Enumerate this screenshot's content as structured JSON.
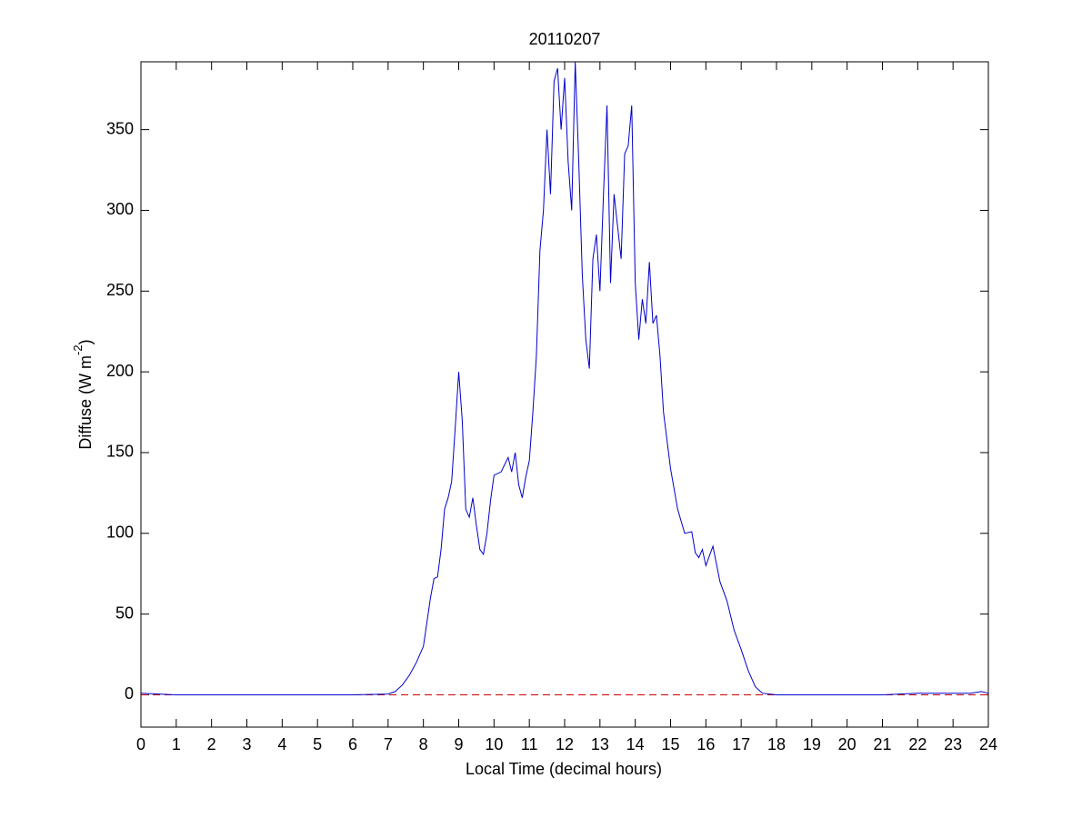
{
  "chart_data": {
    "type": "line",
    "title": "20110207",
    "xlabel": "Local Time (decimal hours)",
    "ylabel": {
      "base": "Diffuse (W m",
      "superscript": "-2",
      "close": ")"
    },
    "x": [
      0,
      0.5,
      1,
      2,
      3,
      4,
      5,
      6,
      7,
      7.2,
      7.4,
      7.6,
      7.8,
      8,
      8.1,
      8.2,
      8.3,
      8.4,
      8.5,
      8.6,
      8.7,
      8.8,
      8.9,
      9,
      9.1,
      9.2,
      9.3,
      9.4,
      9.5,
      9.6,
      9.7,
      9.8,
      9.9,
      10,
      10.2,
      10.4,
      10.5,
      10.6,
      10.7,
      10.8,
      10.9,
      11,
      11.1,
      11.2,
      11.3,
      11.4,
      11.5,
      11.6,
      11.7,
      11.8,
      11.9,
      12,
      12.1,
      12.2,
      12.3,
      12.4,
      12.5,
      12.6,
      12.7,
      12.8,
      12.9,
      13,
      13.1,
      13.2,
      13.3,
      13.4,
      13.5,
      13.6,
      13.7,
      13.8,
      13.9,
      14,
      14.1,
      14.2,
      14.3,
      14.4,
      14.5,
      14.6,
      14.7,
      14.8,
      15,
      15.2,
      15.4,
      15.6,
      15.7,
      15.8,
      15.9,
      16,
      16.2,
      16.4,
      16.6,
      16.8,
      17,
      17.2,
      17.4,
      17.6,
      17.8,
      18,
      19,
      20,
      21,
      22,
      23,
      23.5,
      23.8,
      24
    ],
    "series": [
      {
        "name": "Diffuse",
        "color": "#0000cc",
        "values": [
          1,
          0.5,
          0,
          0,
          0,
          0,
          0,
          0,
          0.5,
          2,
          6,
          12,
          20,
          30,
          45,
          60,
          72,
          73,
          90,
          115,
          122,
          132,
          165,
          200,
          170,
          115,
          110,
          122,
          105,
          90,
          87,
          100,
          120,
          136,
          138,
          147,
          138,
          150,
          130,
          122,
          135,
          145,
          175,
          210,
          275,
          300,
          350,
          310,
          380,
          388,
          350,
          382,
          330,
          300,
          392,
          330,
          260,
          220,
          202,
          270,
          285,
          250,
          310,
          365,
          255,
          310,
          290,
          270,
          335,
          340,
          365,
          255,
          220,
          245,
          230,
          268,
          230,
          235,
          210,
          175,
          140,
          115,
          100,
          101,
          88,
          85,
          90,
          80,
          92,
          70,
          58,
          40,
          28,
          15,
          5,
          1,
          0.5,
          0,
          0,
          0,
          0,
          1,
          1,
          1,
          2,
          1
        ]
      }
    ],
    "reference_line": {
      "value": 0,
      "color": "#cc0000"
    },
    "xlim": [
      0,
      24
    ],
    "xticks": [
      0,
      1,
      2,
      3,
      4,
      5,
      6,
      7,
      8,
      9,
      10,
      11,
      12,
      13,
      14,
      15,
      16,
      17,
      18,
      19,
      20,
      21,
      22,
      23,
      24
    ],
    "ylim": [
      -20,
      392
    ],
    "yticks": [
      0,
      50,
      100,
      150,
      200,
      250,
      300,
      350
    ],
    "grid": false
  }
}
